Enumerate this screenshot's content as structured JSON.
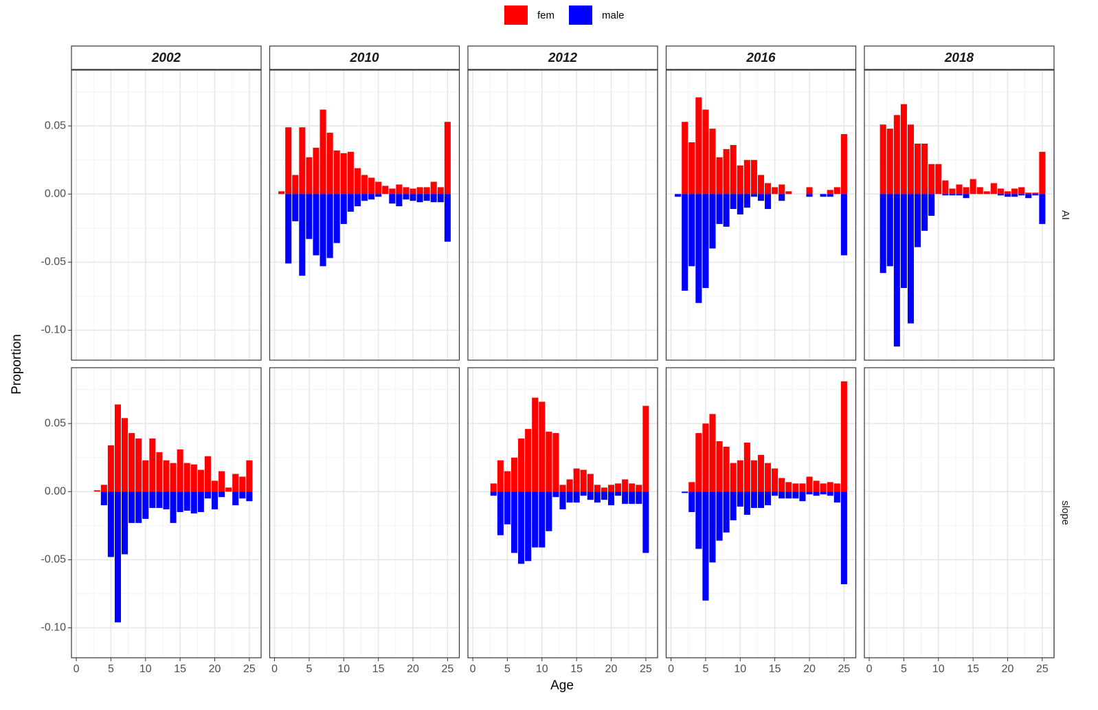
{
  "chart_data": {
    "type": "bar",
    "x_label": "Age",
    "y_label": "Proportion",
    "series": [
      {
        "name": "fem",
        "color": "#ff0000"
      },
      {
        "name": "male",
        "color": "#0000ff"
      }
    ],
    "column_labels": [
      "2002",
      "2010",
      "2012",
      "2016",
      "2018"
    ],
    "row_labels": [
      "AI",
      "slope"
    ],
    "x": [
      1,
      2,
      3,
      4,
      5,
      6,
      7,
      8,
      9,
      10,
      11,
      12,
      13,
      14,
      15,
      16,
      17,
      18,
      19,
      20,
      21,
      22,
      23,
      24,
      25
    ],
    "xlim": [
      -0.7,
      26.7
    ],
    "xticks": [
      0,
      5,
      10,
      15,
      20,
      25
    ],
    "minor_xticks": [
      2.5,
      7.5,
      12.5,
      17.5,
      22.5
    ],
    "ylim": [
      -0.122,
      0.091
    ],
    "yticks": [
      {
        "value": -0.1,
        "label": "-0.10"
      },
      {
        "value": -0.05,
        "label": "-0.05"
      },
      {
        "value": 0,
        "label": "0.00"
      },
      {
        "value": 0.05,
        "label": "0.05"
      }
    ],
    "minor_yticks": [
      -0.075,
      -0.025,
      0.025,
      0.075
    ],
    "grid": true,
    "panels": [
      [
        [],
        [
          [
            0.002,
            0.049,
            0.014,
            0.049,
            0.027,
            0.034,
            0.062,
            0.045,
            0.032,
            0.03,
            0.031,
            0.019,
            0.014,
            0.012,
            0.009,
            0.006,
            0.004,
            0.007,
            0.005,
            0.004,
            0.005,
            0.005,
            0.009,
            0.005,
            0.053
          ],
          [
            0,
            -0.051,
            -0.02,
            -0.06,
            -0.033,
            -0.045,
            -0.053,
            -0.047,
            -0.036,
            -0.022,
            -0.013,
            -0.009,
            -0.005,
            -0.004,
            -0.002,
            0,
            -0.007,
            -0.009,
            -0.004,
            -0.005,
            -0.006,
            -0.005,
            -0.006,
            -0.006,
            -0.035
          ]
        ],
        [],
        [
          [
            0,
            0.053,
            0.038,
            0.071,
            0.062,
            0.048,
            0.027,
            0.033,
            0.036,
            0.021,
            0.025,
            0.025,
            0.014,
            0.008,
            0.005,
            0.007,
            0.002,
            0,
            0,
            0.005,
            0,
            0,
            0.003,
            0.005,
            0.044
          ],
          [
            -0.002,
            -0.071,
            -0.053,
            -0.08,
            -0.069,
            -0.04,
            -0.022,
            -0.024,
            -0.011,
            -0.015,
            -0.01,
            -0.002,
            -0.005,
            -0.011,
            0,
            -0.005,
            0,
            0,
            0,
            -0.002,
            0,
            -0.002,
            -0.002,
            0,
            -0.045
          ]
        ],
        [
          [
            0,
            0.051,
            0.048,
            0.058,
            0.066,
            0.051,
            0.037,
            0.037,
            0.022,
            0.022,
            0.01,
            0.004,
            0.007,
            0.005,
            0.011,
            0.005,
            0.002,
            0.008,
            0.004,
            0.002,
            0.004,
            0.005,
            0.001,
            0.001,
            0.031
          ],
          [
            0,
            -0.058,
            -0.053,
            -0.112,
            -0.069,
            -0.095,
            -0.039,
            -0.027,
            -0.016,
            0,
            -0.001,
            -0.001,
            -0.001,
            -0.003,
            0,
            0,
            0,
            0,
            -0.001,
            -0.002,
            -0.002,
            -0.001,
            -0.003,
            -0.001,
            -0.022
          ]
        ]
      ],
      [
        [
          [
            0,
            0,
            0.001,
            0.005,
            0.034,
            0.064,
            0.054,
            0.043,
            0.039,
            0.023,
            0.039,
            0.029,
            0.023,
            0.021,
            0.031,
            0.021,
            0.02,
            0.016,
            0.026,
            0.008,
            0.015,
            0.003,
            0.013,
            0.011,
            0.023
          ],
          [
            0,
            0,
            0,
            -0.01,
            -0.048,
            -0.096,
            -0.046,
            -0.023,
            -0.023,
            -0.02,
            -0.012,
            -0.012,
            -0.013,
            -0.023,
            -0.015,
            -0.014,
            -0.016,
            -0.015,
            -0.005,
            -0.013,
            -0.004,
            0,
            -0.01,
            -0.005,
            -0.007
          ]
        ],
        [],
        [
          [
            0,
            0,
            0.006,
            0.023,
            0.015,
            0.025,
            0.039,
            0.046,
            0.069,
            0.066,
            0.044,
            0.043,
            0.005,
            0.009,
            0.017,
            0.016,
            0.013,
            0.005,
            0.003,
            0.005,
            0.006,
            0.009,
            0.006,
            0.005,
            0.063
          ],
          [
            0,
            0,
            -0.003,
            -0.032,
            -0.024,
            -0.045,
            -0.053,
            -0.051,
            -0.041,
            -0.041,
            -0.029,
            -0.004,
            -0.013,
            -0.008,
            -0.008,
            -0.003,
            -0.006,
            -0.008,
            -0.006,
            -0.01,
            -0.003,
            -0.009,
            -0.009,
            -0.009,
            -0.045
          ]
        ],
        [
          [
            0,
            0,
            0.007,
            0.043,
            0.05,
            0.057,
            0.037,
            0.033,
            0.021,
            0.023,
            0.036,
            0.023,
            0.027,
            0.021,
            0.017,
            0.01,
            0.007,
            0.006,
            0.006,
            0.011,
            0.008,
            0.006,
            0.007,
            0.006,
            0.081
          ],
          [
            0,
            -0.001,
            -0.015,
            -0.042,
            -0.08,
            -0.052,
            -0.036,
            -0.03,
            -0.021,
            -0.011,
            -0.017,
            -0.012,
            -0.012,
            -0.01,
            -0.003,
            -0.005,
            -0.005,
            -0.005,
            -0.007,
            -0.002,
            -0.003,
            -0.002,
            -0.003,
            -0.008,
            -0.068
          ]
        ],
        []
      ]
    ]
  }
}
